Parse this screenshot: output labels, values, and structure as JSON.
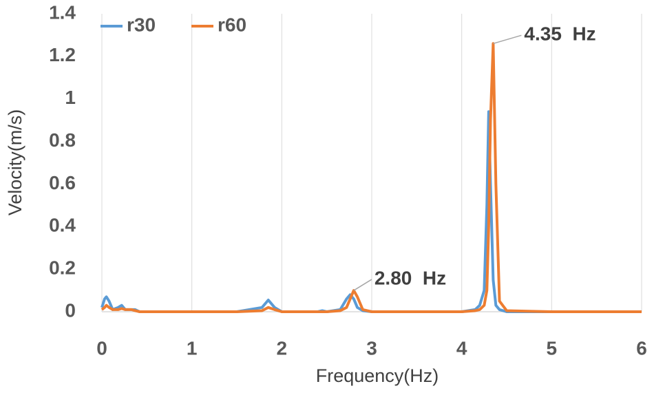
{
  "chart_data": {
    "type": "line",
    "x_label": "Frequency(Hz)",
    "y_label": "Velocity(m/s)",
    "x": [
      0,
      0.03,
      0.05,
      0.08,
      0.12,
      0.18,
      0.22,
      0.26,
      0.33,
      0.37,
      0.42,
      0.6,
      1.0,
      1.5,
      1.78,
      1.85,
      1.92,
      2.0,
      2.4,
      2.45,
      2.5,
      2.65,
      2.72,
      2.76,
      2.8,
      2.84,
      2.9,
      3.0,
      3.5,
      4.0,
      4.15,
      4.2,
      4.25,
      4.28,
      4.3,
      4.32,
      4.35,
      4.38,
      4.42,
      4.5,
      5.0,
      6.0
    ],
    "series": [
      {
        "name": "r30",
        "color": "#5b9bd5",
        "values": [
          0.02,
          0.06,
          0.07,
          0.05,
          0.01,
          0.02,
          0.03,
          0.01,
          0.01,
          0.01,
          0,
          0,
          0,
          0,
          0.02,
          0.055,
          0.02,
          0,
          0,
          0.005,
          0,
          0.01,
          0.06,
          0.08,
          0.06,
          0.02,
          0.005,
          0,
          0,
          0,
          0.01,
          0.03,
          0.1,
          0.5,
          0.94,
          0.6,
          0.15,
          0.03,
          0.01,
          0,
          0,
          0
        ]
      },
      {
        "name": "r60",
        "color": "#ed7d31",
        "values": [
          0.01,
          0.02,
          0.03,
          0.02,
          0.01,
          0.01,
          0.015,
          0.01,
          0.01,
          0.005,
          0,
          0,
          0,
          0,
          0.005,
          0.02,
          0.01,
          0,
          0,
          0,
          0,
          0.005,
          0.02,
          0.06,
          0.1,
          0.07,
          0.01,
          0,
          0,
          0,
          0.005,
          0.01,
          0.03,
          0.1,
          0.4,
          0.9,
          1.26,
          0.6,
          0.05,
          0.005,
          0,
          0
        ]
      }
    ],
    "annotations": [
      {
        "text": "2.80  Hz",
        "x": 2.8,
        "y": 0.1
      },
      {
        "text": "4.35  Hz",
        "x": 4.35,
        "y": 1.26
      }
    ],
    "xlim": [
      0,
      6
    ],
    "xticks": [
      0,
      1,
      2,
      3,
      4,
      5,
      6
    ],
    "ylim": [
      0,
      1.4
    ],
    "yticks": [
      0,
      0.2,
      0.4,
      0.6,
      0.8,
      1,
      1.2,
      1.4
    ],
    "grid": "x",
    "legend": "top-left"
  }
}
